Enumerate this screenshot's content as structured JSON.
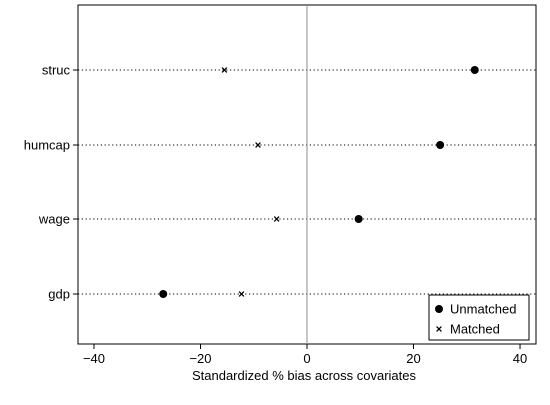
{
  "chart_data": {
    "type": "scatter",
    "title": "",
    "xlabel": "Standardized % bias across covariates",
    "ylabel": "",
    "xlim": [
      -43,
      43
    ],
    "xticks": [
      -40,
      -20,
      0,
      20,
      40
    ],
    "xtick_labels": [
      "−40",
      "−20",
      "0",
      "20",
      "40"
    ],
    "categories": [
      "struc",
      "humcap",
      "wage",
      "gdp"
    ],
    "series": [
      {
        "name": "Unmatched",
        "marker": "dot",
        "values": [
          31.5,
          25,
          9.7,
          -27
        ]
      },
      {
        "name": "Matched",
        "marker": "x",
        "values": [
          -15.5,
          -9.2,
          -5.7,
          -12.3
        ]
      }
    ],
    "reference_line_x": 0,
    "grid": "dotted horizontal per category",
    "legend_position": "bottom-right",
    "colors": {
      "frame": "#000000",
      "marks": "#000000",
      "refline": "#8c8c8c",
      "background": "#ffffff"
    }
  }
}
